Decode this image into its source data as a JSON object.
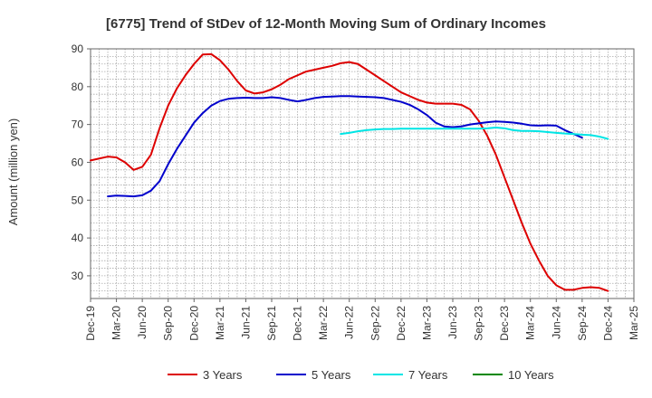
{
  "chart_data": {
    "type": "line",
    "title": "[6775]  Trend of StDev of 12-Month Moving Sum of Ordinary Incomes",
    "xlabel": "",
    "ylabel": "Amount (million yen)",
    "ylim": [
      24,
      90
    ],
    "yticks": [
      30,
      40,
      50,
      60,
      70,
      80,
      90
    ],
    "x_tick_labels": [
      "Dec-19",
      "Mar-20",
      "Jun-20",
      "Sep-20",
      "Dec-20",
      "Mar-21",
      "Jun-21",
      "Sep-21",
      "Dec-21",
      "Mar-22",
      "Jun-22",
      "Sep-22",
      "Dec-22",
      "Mar-23",
      "Jun-23",
      "Sep-23",
      "Dec-23",
      "Mar-24",
      "Jun-24",
      "Sep-24",
      "Dec-24",
      "Mar-25"
    ],
    "grid": true,
    "legend_position": "bottom",
    "series": [
      {
        "name": "3 Years",
        "color": "#dd0000",
        "start_month": 0,
        "values": [
          60.5,
          61.0,
          61.5,
          61.3,
          60.0,
          58.0,
          58.8,
          62.0,
          69.0,
          75.0,
          79.5,
          83.0,
          86.0,
          88.5,
          88.6,
          87.0,
          84.5,
          81.5,
          79.0,
          78.2,
          78.5,
          79.3,
          80.5,
          82.0,
          83.0,
          84.0,
          84.5,
          85.0,
          85.5,
          86.2,
          86.5,
          86.0,
          84.5,
          83.0,
          81.5,
          80.0,
          78.5,
          77.5,
          76.5,
          75.8,
          75.5,
          75.5,
          75.5,
          75.2,
          74.0,
          71.0,
          67.0,
          62.0,
          56.0,
          50.0,
          44.0,
          38.5,
          34.0,
          30.0,
          27.5,
          26.3,
          26.3,
          26.8,
          27.0,
          26.8,
          26.0
        ]
      },
      {
        "name": "5 Years",
        "color": "#0000cc",
        "start_month": 2,
        "values": [
          51.0,
          51.2,
          51.1,
          51.0,
          51.3,
          52.5,
          55.0,
          59.5,
          63.5,
          67.0,
          70.5,
          73.0,
          75.0,
          76.2,
          76.8,
          77.0,
          77.1,
          77.0,
          77.0,
          77.2,
          77.0,
          76.5,
          76.1,
          76.5,
          77.0,
          77.3,
          77.4,
          77.5,
          77.5,
          77.4,
          77.3,
          77.2,
          77.0,
          76.5,
          76.0,
          75.2,
          74.0,
          72.5,
          70.5,
          69.5,
          69.3,
          69.5,
          70.0,
          70.3,
          70.6,
          70.8,
          70.7,
          70.5,
          70.2,
          69.8,
          69.7,
          69.8,
          69.7,
          68.5,
          67.5,
          66.5
        ]
      },
      {
        "name": "7 Years",
        "color": "#00e5e5",
        "start_month": 29,
        "values": [
          67.5,
          67.8,
          68.2,
          68.5,
          68.7,
          68.8,
          68.8,
          68.9,
          68.9,
          68.9,
          68.9,
          68.9,
          68.9,
          68.9,
          68.9,
          68.9,
          68.9,
          69.0,
          69.2,
          69.0,
          68.5,
          68.3,
          68.3,
          68.2,
          68.0,
          67.8,
          67.6,
          67.5,
          67.3,
          67.2,
          66.8,
          66.2
        ]
      },
      {
        "name": "10 Years",
        "color": "#008800",
        "start_month": 0,
        "values": []
      }
    ]
  }
}
